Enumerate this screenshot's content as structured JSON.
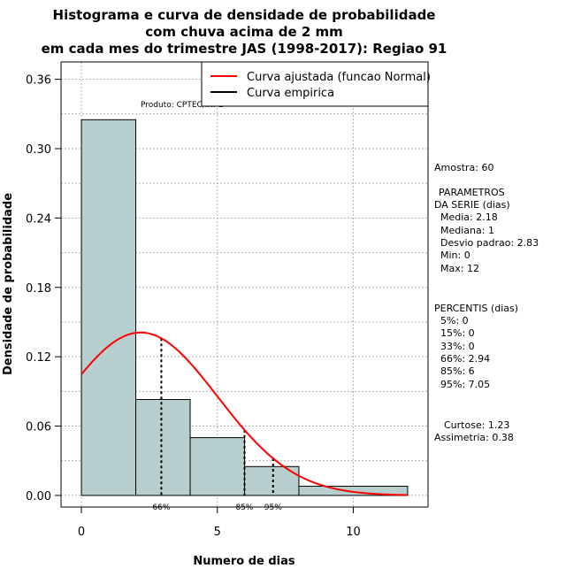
{
  "chart_data": {
    "type": "bar",
    "title_lines": [
      "Histograma e curva de densidade de probabilidade",
      "com chuva acima de 2 mm",
      "em cada mes do trimestre JAS (1998-2017): Regiao 91"
    ],
    "xlabel": "Numero de dias",
    "ylabel": "Densidade de probabilidade",
    "xlim": [
      -0.75,
      12.75
    ],
    "ylim": [
      -0.01,
      0.375
    ],
    "x_ticks": [
      0,
      5,
      10
    ],
    "y_ticks": [
      0.0,
      0.06,
      0.12,
      0.18,
      0.24,
      0.3,
      0.36
    ],
    "y_tick_labels": [
      "0.00",
      "0.06",
      "0.12",
      "0.18",
      "0.24",
      "0.30",
      "0.36"
    ],
    "bins": [
      {
        "start": 0,
        "end": 2,
        "density": 0.325
      },
      {
        "start": 2,
        "end": 4,
        "density": 0.083
      },
      {
        "start": 4,
        "end": 6,
        "density": 0.05
      },
      {
        "start": 6,
        "end": 8,
        "density": 0.025
      },
      {
        "start": 8,
        "end": 12,
        "density": 0.008
      }
    ],
    "normal_curve": {
      "mean": 2.18,
      "sd": 2.83,
      "x_from": 0,
      "x_to": 12
    },
    "percentile_lines": [
      {
        "label": "66%",
        "x": 2.94
      },
      {
        "label": "85%",
        "x": 6
      },
      {
        "label": "95%",
        "x": 7.05
      }
    ],
    "legend": [
      {
        "label": "Curva ajustada (funcao Normal)",
        "color": "#ff0000"
      },
      {
        "label": "Curva empirica",
        "color": "#000000"
      }
    ],
    "product_label": "Produto: CPTEC/INPE",
    "grid": true,
    "colors": {
      "bar_fill": "#b7cfcf",
      "curve": "#ff0000",
      "grid": "#b0b0b0"
    }
  },
  "stats_panel": {
    "amostra": "Amostra: 60",
    "parametros_title_1": "PARAMETROS",
    "parametros_title_2": "DA SERIE (dias)",
    "media": "Media: 2.18",
    "mediana": "Mediana: 1",
    "desvio": "Desvio padrao: 2.83",
    "min": "Min: 0",
    "max": "Max: 12",
    "percentis_title": "PERCENTIS (dias)",
    "p5": "5%: 0",
    "p15": "15%: 0",
    "p33": "33%: 0",
    "p66": "66%: 2.94",
    "p85": "85%: 6",
    "p95": "95%: 7.05",
    "curtose": "Curtose: 1.23",
    "assimetria": "Assimetria: 0.38"
  }
}
